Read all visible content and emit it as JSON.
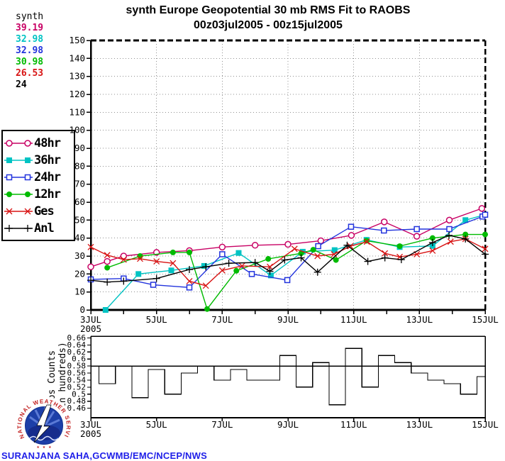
{
  "title": {
    "line1": "synth Europe Geopotential 30 mb RMS Fit to RAOBS",
    "line2": "00z03jul2005 - 00z15jul2005"
  },
  "stats": {
    "header": "synth",
    "rows": [
      {
        "value": "39.19",
        "color": "#c80064"
      },
      {
        "value": "32.98",
        "color": "#00c3c3"
      },
      {
        "value": "32.98",
        "color": "#2233dd"
      },
      {
        "value": "30.98",
        "color": "#00bb00"
      },
      {
        "value": "26.53",
        "color": "#d81414"
      },
      {
        "value": "24",
        "color": "#000000"
      }
    ]
  },
  "legend": {
    "items": [
      {
        "label": "48hr",
        "color": "#c80064",
        "marker": "ocircle"
      },
      {
        "label": "36hr",
        "color": "#00c3c3",
        "marker": "fsquare"
      },
      {
        "label": "24hr",
        "color": "#2233dd",
        "marker": "osquare"
      },
      {
        "label": "12hr",
        "color": "#00bb00",
        "marker": "fcircle"
      },
      {
        "label": "Ges",
        "color": "#d81414",
        "marker": "xmark"
      },
      {
        "label": "Anl",
        "color": "#000000",
        "marker": "plus"
      }
    ]
  },
  "counts_ylabel": {
    "line1": "Obs Counts",
    "line2": "(in hundreds)"
  },
  "logo": {
    "ring_text": "NATIONAL WEATHER SERVICE",
    "stars": "★ ★ ★"
  },
  "credit": "SURANJANA SAHA,GCWMB/EMC/NCEP/NWS",
  "chart_data": [
    {
      "type": "line",
      "title": "synth Europe Geopotential 30 mb RMS Fit to RAOBS",
      "subtitle": "00z03jul2005 - 00z15jul2005",
      "xlabel": "",
      "ylabel": "",
      "xlim": [
        3,
        15
      ],
      "ylim": [
        0,
        150
      ],
      "ytick_step": 10,
      "grid": "dotted",
      "grid_v_days": [
        5,
        7,
        9,
        11,
        13
      ],
      "xticks": [
        {
          "pos": 3,
          "label": "3JUL",
          "sublabel": "2005"
        },
        {
          "pos": 5,
          "label": "5JUL"
        },
        {
          "pos": 7,
          "label": "7JUL"
        },
        {
          "pos": 9,
          "label": "9JUL"
        },
        {
          "pos": 11,
          "label": "11JUL"
        },
        {
          "pos": 13,
          "label": "13JUL"
        },
        {
          "pos": 15,
          "label": "15JUL"
        }
      ],
      "series": [
        {
          "name": "48hr",
          "color": "#c80064",
          "marker": "ocircle",
          "x": [
            3,
            3.5,
            4,
            5,
            6,
            7,
            8,
            9,
            10,
            10.93,
            11.93,
            12.92,
            13.91,
            14.9
          ],
          "y": [
            24,
            27,
            30,
            32,
            33,
            35,
            36,
            36.5,
            38.5,
            41.5,
            49,
            41,
            50,
            56.5
          ]
        },
        {
          "name": "36hr",
          "color": "#00c3c3",
          "marker": "fsquare",
          "x": [
            3.45,
            4.45,
            5.45,
            6.45,
            7.5,
            8.48,
            9.45,
            10.42,
            11.39,
            12.4,
            13.4,
            14.4,
            15
          ],
          "y": [
            0,
            20,
            22,
            24.5,
            31.7,
            19.2,
            32.4,
            33.3,
            39,
            35,
            35.6,
            50,
            53
          ]
        },
        {
          "name": "24hr",
          "color": "#2233dd",
          "marker": "osquare",
          "x": [
            3,
            4,
            4.9,
            6,
            7,
            7.9,
            8.98,
            9.92,
            10.92,
            11.92,
            12.92,
            13.91,
            14.92,
            15
          ],
          "y": [
            17,
            17.5,
            14,
            12.5,
            31,
            20,
            16.6,
            35.5,
            46.3,
            44.2,
            45,
            45,
            52,
            53
          ]
        },
        {
          "name": "12hr",
          "color": "#00bb00",
          "marker": "fcircle",
          "x": [
            3.5,
            4.5,
            5.5,
            6,
            6.54,
            7.43,
            8.4,
            9.4,
            9.77,
            10.46,
            11.39,
            12.4,
            13.4,
            14.4,
            15
          ],
          "y": [
            23.5,
            30,
            32,
            32,
            0.5,
            21.8,
            28.4,
            31.5,
            33.5,
            27.8,
            38.5,
            35.5,
            40,
            42,
            42
          ]
        },
        {
          "name": "Ges",
          "color": "#d81414",
          "marker": "xmark",
          "x": [
            3,
            3.5,
            4,
            4.5,
            5,
            5.5,
            6,
            6.5,
            7,
            7.6,
            8.45,
            9.2,
            9.9,
            10.4,
            10.9,
            11.4,
            11.95,
            12.4,
            12.92,
            13.4,
            13.95,
            14.4,
            15
          ],
          "y": [
            35,
            30.5,
            28,
            28.5,
            27,
            26,
            16,
            13.5,
            22,
            24.5,
            24,
            34,
            30,
            31,
            35.5,
            38,
            31.5,
            29.5,
            31,
            33,
            38,
            39.5,
            34
          ]
        },
        {
          "name": "Anl",
          "color": "#000000",
          "marker": "plus",
          "x": [
            3,
            3.5,
            4,
            5,
            6,
            6.5,
            7.2,
            8,
            8.45,
            8.9,
            9.4,
            9.9,
            10.8,
            11.43,
            11.95,
            12.45,
            13.4,
            13.9,
            14.4,
            15
          ],
          "y": [
            16.5,
            15.5,
            16,
            17.5,
            22.5,
            24,
            26,
            26.4,
            21.5,
            27.8,
            29,
            21,
            36,
            27,
            29,
            28,
            37.5,
            41.5,
            39.5,
            31
          ]
        }
      ]
    },
    {
      "type": "bar",
      "title": "",
      "xlabel": "",
      "ylabel": "Obs Counts (in hundreds)",
      "xlim": [
        3,
        15
      ],
      "ylim": [
        0.433,
        0.665
      ],
      "baseline": 0.58,
      "yticks": [
        0.46,
        0.48,
        0.5,
        0.52,
        0.54,
        0.56,
        0.58,
        0.6,
        0.62,
        0.64,
        0.66
      ],
      "xticks": [
        {
          "pos": 3,
          "label": "3JUL",
          "sublabel": "2005"
        },
        {
          "pos": 5,
          "label": "5JUL"
        },
        {
          "pos": 7,
          "label": "7JUL"
        },
        {
          "pos": 9,
          "label": "9JUL"
        },
        {
          "pos": 11,
          "label": "11JUL"
        },
        {
          "pos": 13,
          "label": "13JUL"
        },
        {
          "pos": 15,
          "label": "15JUL"
        }
      ],
      "x_centers": [
        3,
        3.5,
        4,
        4.5,
        5,
        5.5,
        6,
        6.5,
        7,
        7.5,
        8,
        8.5,
        9,
        9.5,
        10,
        10.5,
        11,
        11.5,
        12,
        12.5,
        13,
        13.5,
        14,
        14.5,
        15
      ],
      "values": [
        0.58,
        0.53,
        0.58,
        0.49,
        0.57,
        0.5,
        0.56,
        0.58,
        0.54,
        0.57,
        0.54,
        0.54,
        0.61,
        0.52,
        0.59,
        0.47,
        0.63,
        0.52,
        0.61,
        0.59,
        0.56,
        0.54,
        0.53,
        0.5,
        0.55
      ]
    }
  ]
}
